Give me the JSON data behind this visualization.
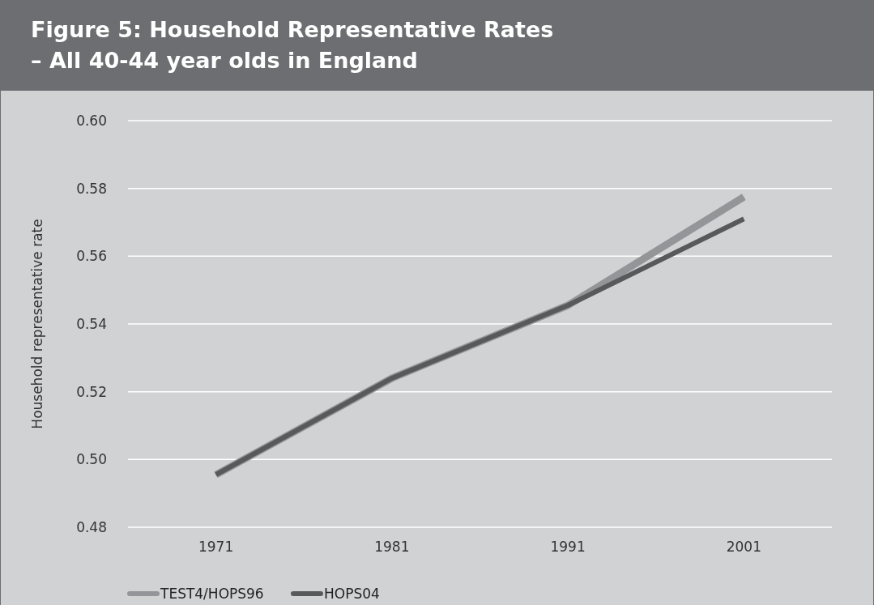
{
  "chart_data": {
    "type": "line",
    "title": "Figure 5: Household Representative Rates\n– All 40-44 year olds in England",
    "ylabel": "Household representative rate",
    "categories": [
      "1971",
      "1981",
      "1991",
      "2001"
    ],
    "series": [
      {
        "name": "TEST4/HOPS96",
        "color": "#939598",
        "values": [
          0.4955,
          0.524,
          0.5455,
          0.5775
        ]
      },
      {
        "name": "HOPS04",
        "color": "#58595b",
        "values": [
          0.4955,
          0.524,
          0.5455,
          0.571
        ]
      }
    ],
    "ylim": [
      0.48,
      0.6
    ],
    "yticks": [
      {
        "value": 0.48,
        "label": "0.48"
      },
      {
        "value": 0.5,
        "label": "0.50"
      },
      {
        "value": 0.52,
        "label": "0.52"
      },
      {
        "value": 0.54,
        "label": "0.54"
      },
      {
        "value": 0.56,
        "label": "0.56"
      },
      {
        "value": 0.58,
        "label": "0.58"
      },
      {
        "value": 0.6,
        "label": "0.60"
      }
    ],
    "grid": "y",
    "legend": "bottom",
    "marker": "none",
    "line_style": "solid"
  }
}
